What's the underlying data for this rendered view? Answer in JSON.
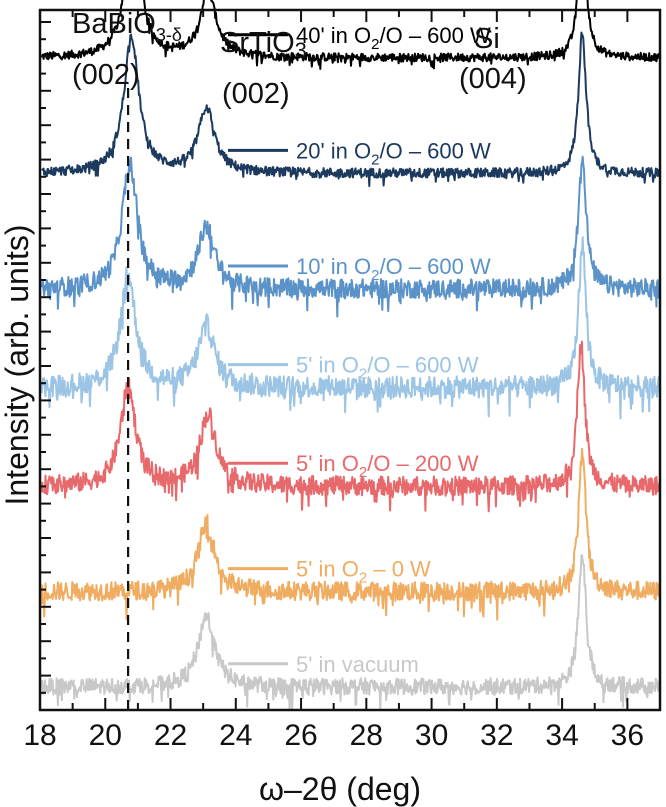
{
  "chart_data": {
    "type": "line",
    "title": "",
    "xlabel": "ω–2θ (deg)",
    "ylabel": "Intensity (arb. units)",
    "xlim": [
      18,
      37
    ],
    "x_ticks": [
      "18",
      "20",
      "22",
      "24",
      "26",
      "28",
      "30",
      "32",
      "34",
      "36"
    ],
    "y_ticks_labeled": false,
    "reference_line": {
      "x": 20.7,
      "style": "dashed"
    },
    "peak_labels": [
      {
        "name": "BaBiO",
        "subscript": "3-δ",
        "index": "(002)"
      },
      {
        "name": "SrTiO",
        "subscript": "3",
        "index": "(002)"
      },
      {
        "name": "Si",
        "subscript": "",
        "index": "(004)"
      }
    ],
    "series": [
      {
        "name": "40' in O2/O – 600 W",
        "label": "40' in O",
        "sub": "2",
        "label_rest": "/O – 600 W",
        "color": "#000000",
        "baseline": 9.4,
        "noise": 0.06,
        "peaks": [
          {
            "x": 20.85,
            "h": 1.95,
            "w": 0.28
          },
          {
            "x": 23.15,
            "h": 0.95,
            "w": 0.3
          },
          {
            "x": 34.62,
            "h": 2.05,
            "w": 0.14
          }
        ]
      },
      {
        "name": "20' in O2/O – 600 W",
        "label": "20' in O",
        "sub": "2",
        "label_rest": "/O – 600 W",
        "color": "#1c3a5e",
        "baseline": 7.7,
        "noise": 0.07,
        "peaks": [
          {
            "x": 20.8,
            "h": 2.0,
            "w": 0.28
          },
          {
            "x": 23.1,
            "h": 0.95,
            "w": 0.3
          },
          {
            "x": 34.62,
            "h": 2.1,
            "w": 0.14
          }
        ]
      },
      {
        "name": "10' in O2/O – 600 W",
        "label": "10' in O",
        "sub": "2",
        "label_rest": "/O – 600 W",
        "color": "#5b93c9",
        "baseline": 6.0,
        "noise": 0.14,
        "peaks": [
          {
            "x": 20.75,
            "h": 1.85,
            "w": 0.28
          },
          {
            "x": 23.1,
            "h": 0.9,
            "w": 0.3
          },
          {
            "x": 34.62,
            "h": 2.0,
            "w": 0.14
          }
        ]
      },
      {
        "name": "5' in O2/O – 600 W",
        "label": "5' in O",
        "sub": "2",
        "label_rest": "/O – 600 W",
        "color": "#9cc4e4",
        "baseline": 4.55,
        "noise": 0.16,
        "peaks": [
          {
            "x": 20.7,
            "h": 1.65,
            "w": 0.28
          },
          {
            "x": 23.1,
            "h": 0.9,
            "w": 0.3
          },
          {
            "x": 34.62,
            "h": 2.1,
            "w": 0.14
          }
        ]
      },
      {
        "name": "5' in O2/O – 200 W",
        "label": "5' in O",
        "sub": "2",
        "label_rest": "/O – 200 W",
        "color": "#e8696b",
        "baseline": 3.1,
        "noise": 0.14,
        "peaks": [
          {
            "x": 20.7,
            "h": 1.45,
            "w": 0.28
          },
          {
            "x": 23.15,
            "h": 1.05,
            "w": 0.3
          },
          {
            "x": 34.58,
            "h": 2.1,
            "w": 0.14
          }
        ]
      },
      {
        "name": "5' in O2 – 0 W",
        "label": "5' in O",
        "sub": "2",
        "label_rest": " – 0 W",
        "color": "#f0ad62",
        "baseline": 1.55,
        "noise": 0.14,
        "peaks": [
          {
            "x": 23.1,
            "h": 1.0,
            "w": 0.3
          },
          {
            "x": 34.62,
            "h": 2.0,
            "w": 0.14
          }
        ]
      },
      {
        "name": "5' in vacuum",
        "label": "5' in vacuum",
        "sub": "",
        "label_rest": "",
        "color": "#c8c8c8",
        "baseline": 0.15,
        "noise": 0.12,
        "peaks": [
          {
            "x": 23.1,
            "h": 1.05,
            "w": 0.3
          },
          {
            "x": 34.62,
            "h": 1.95,
            "w": 0.14
          }
        ]
      }
    ]
  }
}
